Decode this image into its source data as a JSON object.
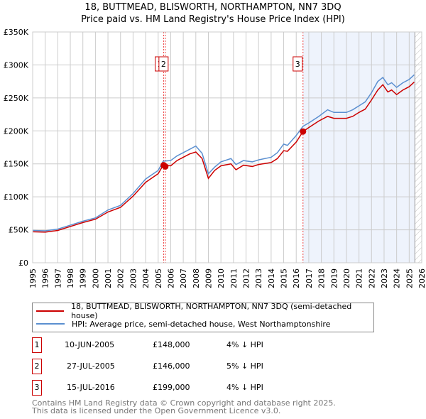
{
  "title_line1": "18, BUTTMEAD, BLISWORTH, NORTHAMPTON, NN7 3DQ",
  "title_line2": "Price paid vs. HM Land Registry's House Price Index (HPI)",
  "chart_data": {
    "type": "line",
    "xlim": [
      1995,
      2026
    ],
    "ylim": [
      0,
      350000
    ],
    "x_ticks": [
      "1995",
      "1996",
      "1997",
      "1998",
      "1999",
      "2000",
      "2001",
      "2002",
      "2003",
      "2004",
      "2005",
      "2006",
      "2007",
      "2008",
      "2009",
      "2010",
      "2011",
      "2012",
      "2013",
      "2014",
      "2015",
      "2016",
      "2017",
      "2018",
      "2019",
      "2020",
      "2021",
      "2022",
      "2023",
      "2024",
      "2025",
      "2026"
    ],
    "y_ticks": [
      {
        "v": 0,
        "label": "£0"
      },
      {
        "v": 50000,
        "label": "£50K"
      },
      {
        "v": 100000,
        "label": "£100K"
      },
      {
        "v": 150000,
        "label": "£150K"
      },
      {
        "v": 200000,
        "label": "£200K"
      },
      {
        "v": 250000,
        "label": "£250K"
      },
      {
        "v": 300000,
        "label": "£300K"
      },
      {
        "v": 350000,
        "label": "£350K"
      }
    ],
    "grid": true,
    "shaded_from": 2016.54,
    "hatched_from": 2025.45,
    "series": [
      {
        "name": "18, BUTTMEAD, BLISWORTH, NORTHAMPTON, NN7 3DQ (semi-detached house)",
        "color": "#cc0000",
        "x": [
          1995,
          1996,
          1997,
          1998,
          1999,
          2000,
          2001,
          2002,
          2003,
          2004,
          2005,
          2005.4,
          2006,
          2006.5,
          2007,
          2007.5,
          2008,
          2008.5,
          2009,
          2009.5,
          2010,
          2010.8,
          2011.2,
          2011.8,
          2012.5,
          2013,
          2014,
          2014.5,
          2015,
          2015.3,
          2016,
          2016.54,
          2017,
          2017.8,
          2018.5,
          2019,
          2020,
          2020.5,
          2021,
          2021.5,
          2022,
          2022.5,
          2022.9,
          2023.3,
          2023.6,
          2024,
          2024.5,
          2025,
          2025.4
        ],
        "y": [
          47000,
          46500,
          49000,
          55000,
          61000,
          66000,
          77000,
          84000,
          101000,
          122000,
          135000,
          148000,
          147000,
          155000,
          160000,
          165000,
          168000,
          158000,
          128000,
          140000,
          147000,
          150000,
          141000,
          148000,
          146000,
          149000,
          152000,
          158000,
          170000,
          169000,
          183000,
          199000,
          205000,
          215000,
          222000,
          219000,
          219000,
          222000,
          228000,
          233000,
          247000,
          262000,
          270000,
          259000,
          262000,
          255000,
          262000,
          267000,
          274000
        ]
      },
      {
        "name": "HPI: Average price, semi-detached house, West Northamptonshire",
        "color": "#5b8fd0",
        "x": [
          1995,
          1996,
          1997,
          1998,
          1999,
          2000,
          2001,
          2002,
          2003,
          2004,
          2005,
          2005.4,
          2006,
          2006.5,
          2007,
          2007.5,
          2008,
          2008.5,
          2009,
          2009.5,
          2010,
          2010.8,
          2011.2,
          2011.8,
          2012.5,
          2013,
          2014,
          2014.5,
          2015,
          2015.3,
          2016,
          2016.54,
          2017,
          2017.8,
          2018.5,
          2019,
          2020,
          2020.5,
          2021,
          2021.5,
          2022,
          2022.5,
          2022.9,
          2023.3,
          2023.6,
          2024,
          2024.5,
          2025,
          2025.4
        ],
        "y": [
          49000,
          48500,
          51000,
          57000,
          63000,
          68000,
          80000,
          87000,
          105000,
          127000,
          140000,
          154000,
          155000,
          162000,
          167000,
          172000,
          177000,
          166000,
          135000,
          145000,
          153000,
          158000,
          149000,
          155000,
          153000,
          156000,
          160000,
          167000,
          180000,
          178000,
          193000,
          207000,
          212000,
          222000,
          232000,
          228000,
          228000,
          232000,
          238000,
          244000,
          258000,
          275000,
          281000,
          270000,
          273000,
          266000,
          273000,
          278000,
          285000
        ]
      }
    ],
    "markers": [
      {
        "label": "1",
        "x": 2005.44,
        "y": 148000
      },
      {
        "label": "2",
        "x": 2005.57,
        "y": 146000
      },
      {
        "label": "3",
        "x": 2016.54,
        "y": 199000
      }
    ]
  },
  "legend": [
    {
      "label": "18, BUTTMEAD, BLISWORTH, NORTHAMPTON, NN7 3DQ (semi-detached house)",
      "color": "#cc0000"
    },
    {
      "label": "HPI: Average price, semi-detached house, West Northamptonshire",
      "color": "#5b8fd0"
    }
  ],
  "transactions": [
    {
      "num": "1",
      "date": "10-JUN-2005",
      "price": "£148,000",
      "hpi": "4% ↓ HPI"
    },
    {
      "num": "2",
      "date": "27-JUL-2005",
      "price": "£146,000",
      "hpi": "5% ↓ HPI"
    },
    {
      "num": "3",
      "date": "15-JUL-2016",
      "price": "£199,000",
      "hpi": "4% ↓ HPI"
    }
  ],
  "footer_line1": "Contains HM Land Registry data © Crown copyright and database right 2025.",
  "footer_line2": "This data is licensed under the Open Government Licence v3.0."
}
